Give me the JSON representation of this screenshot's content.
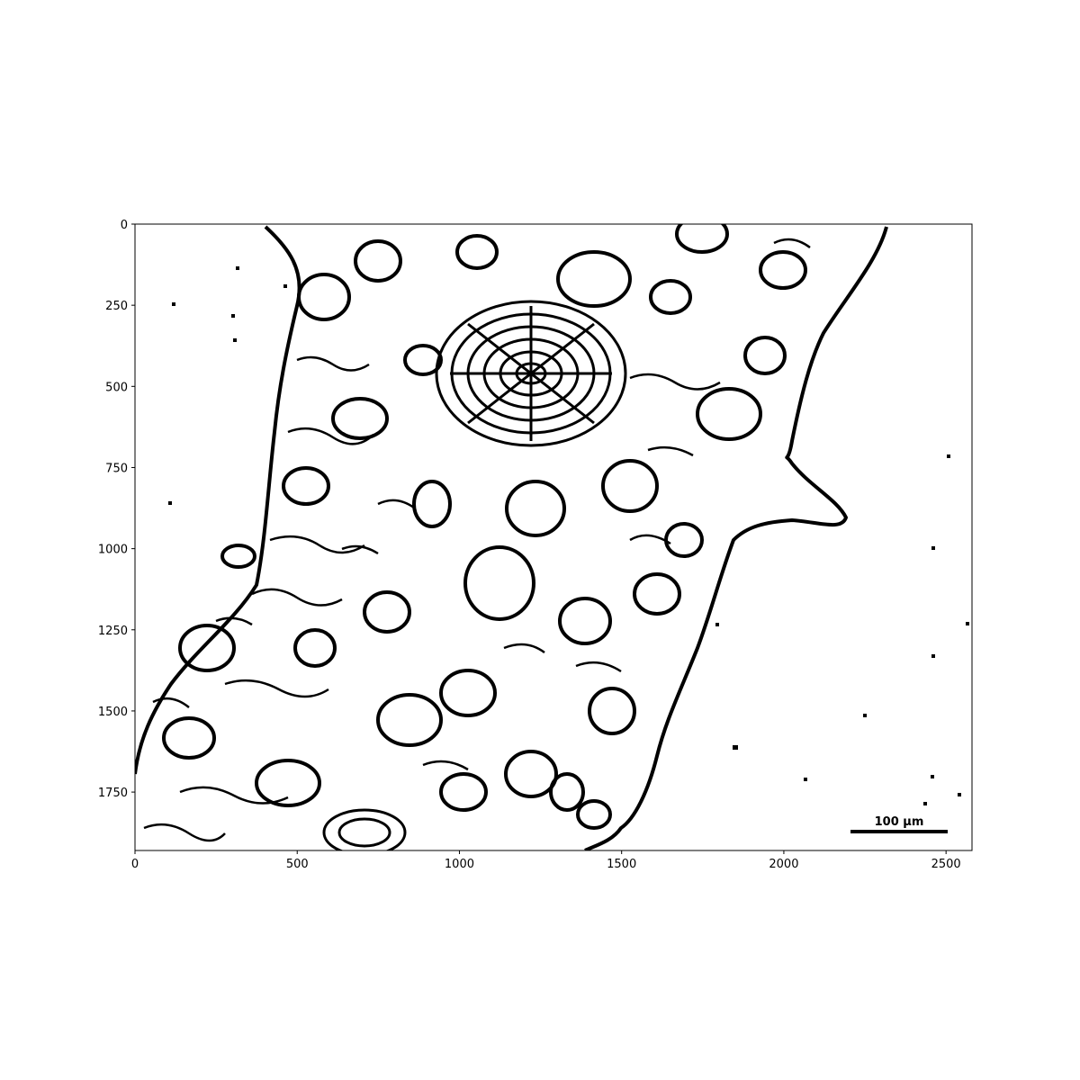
{
  "image": {
    "description_type": "binary edge map of plant stem cross-section",
    "foreground_color": "#000000",
    "background_color": "#ffffff"
  },
  "axes": {
    "x_range": [
      0,
      2580
    ],
    "y_range": [
      1930,
      0
    ],
    "x_ticks": [
      {
        "value": 0,
        "label": "0"
      },
      {
        "value": 500,
        "label": "500"
      },
      {
        "value": 1000,
        "label": "1000"
      },
      {
        "value": 1500,
        "label": "1500"
      },
      {
        "value": 2000,
        "label": "2000"
      },
      {
        "value": 2500,
        "label": "2500"
      }
    ],
    "y_ticks": [
      {
        "value": 0,
        "label": "0"
      },
      {
        "value": 250,
        "label": "250"
      },
      {
        "value": 500,
        "label": "500"
      },
      {
        "value": 750,
        "label": "750"
      },
      {
        "value": 1000,
        "label": "1000"
      },
      {
        "value": 1250,
        "label": "1250"
      },
      {
        "value": 1500,
        "label": "1500"
      },
      {
        "value": 1750,
        "label": "1750"
      }
    ]
  },
  "scale_bar": {
    "label": "100 µm",
    "x_start": 2210,
    "x_end": 2510,
    "y": 1880
  }
}
